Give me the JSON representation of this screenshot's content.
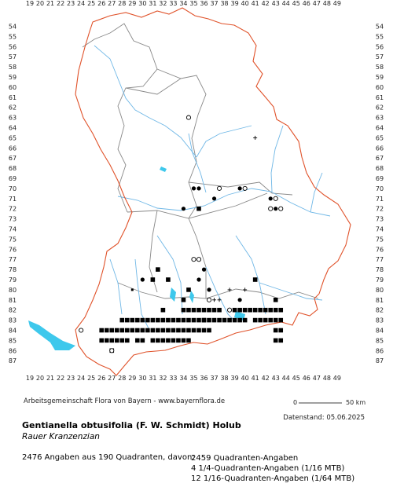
{
  "x_labels": [
    "19",
    "20",
    "21",
    "22",
    "23",
    "24",
    "25",
    "26",
    "27",
    "28",
    "29",
    "30",
    "31",
    "32",
    "33",
    "34",
    "35",
    "36",
    "37",
    "38",
    "39",
    "40",
    "41",
    "42",
    "43",
    "44",
    "45",
    "46",
    "47",
    "48",
    "49"
  ],
  "y_labels": [
    "54",
    "55",
    "56",
    "57",
    "58",
    "59",
    "60",
    "61",
    "62",
    "63",
    "64",
    "65",
    "66",
    "67",
    "68",
    "69",
    "70",
    "71",
    "72",
    "73",
    "74",
    "75",
    "76",
    "77",
    "78",
    "79",
    "80",
    "81",
    "82",
    "83",
    "84",
    "85",
    "86",
    "87"
  ],
  "credit": "Arbeitsgemeinschaft Flora von Bayern - www.bayernflora.de",
  "scale": {
    "zero": "0",
    "label": "50 km"
  },
  "datestamp": "Datenstand: 05.06.2025",
  "title": "Gentianella obtusifolia (F. W. Schmidt) Holub",
  "subtitle": "Rauer Kranzenzian",
  "stats": {
    "total": "2476 Angaben aus 190 Quadranten, davon:",
    "line1": "2459 Quadranten-Angaben",
    "line2": "4 1/4-Quadranten-Angaben (1/16 MTB)",
    "line3": "12 1/16-Quadranten-Angaben (1/64 MTB)"
  },
  "colors": {
    "border": "#e0522a",
    "district": "#888888",
    "river": "#6fb7e6",
    "lake": "#3ec8ec",
    "marker": "#000000"
  },
  "records": {
    "filled_squares": [
      [
        26,
        84
      ],
      [
        26.5,
        84
      ],
      [
        26,
        85
      ],
      [
        26.5,
        85
      ],
      [
        27,
        84
      ],
      [
        27.5,
        84
      ],
      [
        27,
        85
      ],
      [
        27.5,
        85
      ],
      [
        27,
        86
      ],
      [
        28,
        83
      ],
      [
        28.5,
        83
      ],
      [
        28,
        84
      ],
      [
        28.5,
        84
      ],
      [
        28,
        85
      ],
      [
        28.5,
        85
      ],
      [
        29,
        83
      ],
      [
        29.5,
        83
      ],
      [
        29,
        84
      ],
      [
        29.5,
        84
      ],
      [
        29.5,
        85
      ],
      [
        30,
        83
      ],
      [
        30.5,
        83
      ],
      [
        30,
        84
      ],
      [
        30.5,
        84
      ],
      [
        30,
        85
      ],
      [
        31,
        83
      ],
      [
        31.5,
        83
      ],
      [
        31,
        84
      ],
      [
        31.5,
        84
      ],
      [
        31,
        85
      ],
      [
        31.5,
        85
      ],
      [
        32,
        83
      ],
      [
        32.5,
        83
      ],
      [
        32,
        84
      ],
      [
        32.5,
        84
      ],
      [
        32,
        85
      ],
      [
        32.5,
        85
      ],
      [
        33,
        83
      ],
      [
        33.5,
        83
      ],
      [
        33,
        84
      ],
      [
        33.5,
        84
      ],
      [
        33,
        85
      ],
      [
        33.5,
        85
      ],
      [
        34,
        82
      ],
      [
        34.5,
        82
      ],
      [
        34,
        83
      ],
      [
        34.5,
        83
      ],
      [
        34,
        84
      ],
      [
        34.5,
        84
      ],
      [
        34,
        85
      ],
      [
        34.5,
        85
      ],
      [
        35,
        82
      ],
      [
        35.5,
        82
      ],
      [
        35,
        83
      ],
      [
        35.5,
        83
      ],
      [
        35,
        84
      ],
      [
        35.5,
        84
      ],
      [
        36,
        82
      ],
      [
        36.5,
        82
      ],
      [
        36,
        83
      ],
      [
        36.5,
        83
      ],
      [
        36,
        84
      ],
      [
        36.5,
        84
      ],
      [
        37,
        82
      ],
      [
        37.5,
        82
      ],
      [
        37,
        83
      ],
      [
        37.5,
        83
      ],
      [
        38,
        83
      ],
      [
        38.5,
        83
      ],
      [
        39,
        82
      ],
      [
        39.5,
        82
      ],
      [
        39,
        83
      ],
      [
        39.5,
        83
      ],
      [
        40,
        82
      ],
      [
        40.5,
        82
      ],
      [
        40,
        83
      ],
      [
        41,
        82
      ],
      [
        41.5,
        82
      ],
      [
        41,
        83
      ],
      [
        41.5,
        83
      ],
      [
        42,
        82
      ],
      [
        42.5,
        82
      ],
      [
        42,
        83
      ],
      [
        42.5,
        83
      ],
      [
        43,
        81
      ],
      [
        43,
        82
      ],
      [
        43.5,
        82
      ],
      [
        43,
        83
      ],
      [
        43.5,
        83
      ],
      [
        43,
        84
      ],
      [
        43.5,
        84
      ],
      [
        43,
        85
      ],
      [
        43.5,
        85
      ],
      [
        32.5,
        79
      ],
      [
        34.5,
        80
      ],
      [
        32,
        82
      ],
      [
        36,
        83
      ],
      [
        31.5,
        78
      ],
      [
        31,
        79
      ],
      [
        34,
        81
      ],
      [
        41,
        79
      ],
      [
        35.5,
        72
      ]
    ],
    "filled_circles": [
      [
        35,
        70
      ],
      [
        35.5,
        70
      ],
      [
        39.5,
        70
      ],
      [
        37,
        71
      ],
      [
        43,
        72
      ],
      [
        36,
        78
      ],
      [
        35.5,
        79
      ],
      [
        36.5,
        80
      ],
      [
        39.5,
        81
      ],
      [
        30,
        79
      ],
      [
        34,
        72
      ],
      [
        42.5,
        71
      ]
    ],
    "open_circles": [
      [
        37.5,
        70
      ],
      [
        40,
        70
      ],
      [
        43,
        71
      ],
      [
        42.5,
        72
      ],
      [
        43.5,
        72
      ],
      [
        35,
        77
      ],
      [
        35.5,
        77
      ],
      [
        36.5,
        81
      ],
      [
        38.5,
        82
      ],
      [
        27,
        86
      ],
      [
        24,
        84
      ],
      [
        34.5,
        63
      ]
    ],
    "crosses": [
      [
        41,
        65
      ],
      [
        36.5,
        80
      ],
      [
        37,
        81
      ],
      [
        37.5,
        81
      ],
      [
        38.5,
        80
      ],
      [
        40,
        80
      ],
      [
        37,
        82
      ]
    ],
    "small_squares": [
      [
        29,
        80
      ]
    ]
  }
}
